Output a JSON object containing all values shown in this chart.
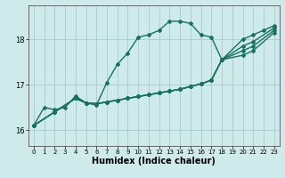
{
  "bg_color": "#ceeaea",
  "grid_color": "#aacccc",
  "line_color": "#1a7060",
  "marker": "D",
  "markersize": 2.0,
  "linewidth": 1.0,
  "xlabel": "Humidex (Indice chaleur)",
  "xlabel_fontsize": 7,
  "tick_fontsize": 5.5,
  "xlim": [
    -0.5,
    23.5
  ],
  "ylim": [
    15.65,
    18.75
  ],
  "yticks": [
    16,
    17,
    18
  ],
  "xticks": [
    0,
    1,
    2,
    3,
    4,
    5,
    6,
    7,
    8,
    9,
    10,
    11,
    12,
    13,
    14,
    15,
    16,
    17,
    18,
    19,
    20,
    21,
    22,
    23
  ],
  "series": [
    {
      "x": [
        0,
        1,
        2,
        3,
        4,
        5,
        6,
        7,
        8,
        9,
        10,
        11,
        12,
        13,
        14,
        15,
        16,
        17,
        18,
        20,
        21,
        22,
        23
      ],
      "y": [
        16.1,
        16.5,
        16.45,
        16.5,
        16.75,
        16.6,
        16.55,
        17.05,
        17.45,
        17.7,
        18.05,
        18.1,
        18.2,
        18.4,
        18.4,
        18.35,
        18.1,
        18.05,
        17.55,
        18.0,
        18.1,
        18.2,
        18.3
      ]
    },
    {
      "x": [
        0,
        2,
        4,
        5,
        6,
        7,
        8,
        9,
        10,
        11,
        12,
        13,
        14,
        15,
        16,
        17,
        18,
        20,
        21,
        23
      ],
      "y": [
        16.1,
        16.4,
        16.7,
        16.6,
        16.58,
        16.62,
        16.66,
        16.7,
        16.74,
        16.78,
        16.82,
        16.86,
        16.9,
        16.96,
        17.02,
        17.1,
        17.55,
        17.85,
        17.95,
        18.25
      ]
    },
    {
      "x": [
        0,
        2,
        4,
        5,
        6,
        7,
        8,
        9,
        10,
        11,
        12,
        13,
        14,
        15,
        16,
        17,
        18,
        20,
        21,
        23
      ],
      "y": [
        16.1,
        16.4,
        16.7,
        16.6,
        16.58,
        16.62,
        16.66,
        16.7,
        16.74,
        16.78,
        16.82,
        16.86,
        16.9,
        16.96,
        17.02,
        17.1,
        17.55,
        17.75,
        17.85,
        18.2
      ]
    },
    {
      "x": [
        0,
        2,
        4,
        5,
        6,
        7,
        8,
        9,
        10,
        11,
        12,
        13,
        14,
        15,
        16,
        17,
        18,
        20,
        21,
        23
      ],
      "y": [
        16.1,
        16.4,
        16.7,
        16.6,
        16.58,
        16.62,
        16.66,
        16.7,
        16.74,
        16.78,
        16.82,
        16.86,
        16.9,
        16.96,
        17.02,
        17.1,
        17.55,
        17.65,
        17.75,
        18.15
      ]
    }
  ]
}
